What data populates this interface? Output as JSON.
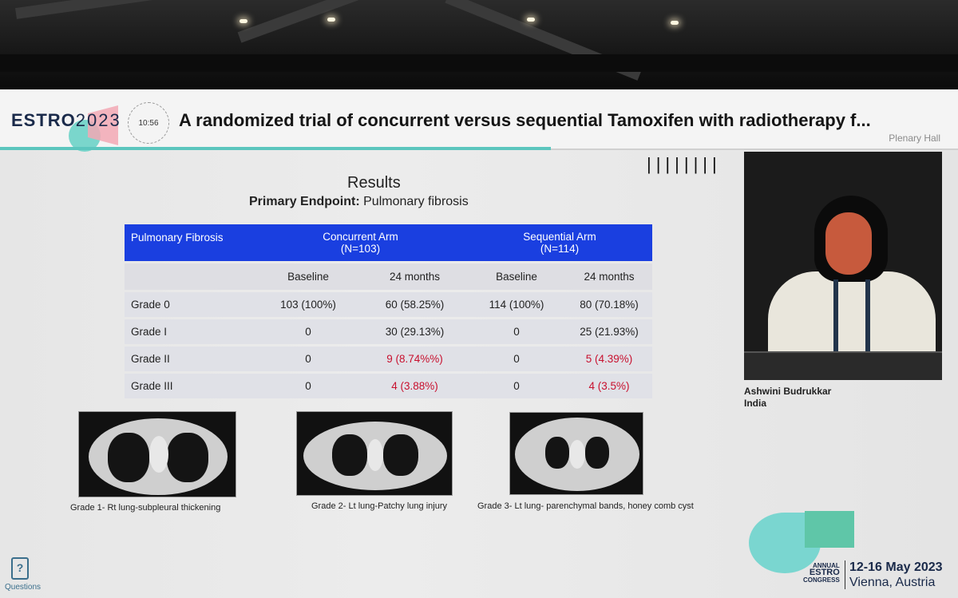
{
  "header": {
    "logo_text": "ESTRO",
    "logo_year": "2023",
    "timer": "10:56",
    "title": "A randomized trial of concurrent versus sequential Tamoxifen with radiotherapy f...",
    "hall": "Plenary Hall"
  },
  "slide": {
    "title": "Results",
    "subtitle_bold": "Primary Endpoint:",
    "subtitle_rest": " Pulmonary fibrosis",
    "ticks": "||||||||",
    "table": {
      "header_lead": "Pulmonary Fibrosis",
      "arm1_name": "Concurrent Arm",
      "arm1_n": "(N=103)",
      "arm2_name": "Sequential Arm",
      "arm2_n": "(N=114)",
      "subheaders": [
        "Baseline",
        "24 months",
        "Baseline",
        "24 months"
      ],
      "rows": [
        {
          "grade": "Grade 0",
          "c_base": "103 (100%)",
          "c_24": "60 (58.25%)",
          "s_base": "114 (100%)",
          "s_24": "80 (70.18%)"
        },
        {
          "grade": "Grade I",
          "c_base": "0",
          "c_24": "30 (29.13%)",
          "s_base": "0",
          "s_24": "25 (21.93%)"
        },
        {
          "grade": "Grade II",
          "c_base": "0",
          "c_24": "9 (8.74%%)",
          "s_base": "0",
          "s_24": "5 (4.39%)"
        },
        {
          "grade": "Grade III",
          "c_base": "0",
          "c_24": "4 (3.88%)",
          "s_base": "0",
          "s_24": "4 (3.5%)"
        }
      ]
    },
    "captions": [
      "Grade 1- Rt lung-subpleural thickening",
      "Grade 2- Lt lung-Patchy lung injury",
      "Grade 3- Lt lung- parenchymal bands, honey comb cyst"
    ]
  },
  "speaker": {
    "name": "Ashwini Budrukkar",
    "country": "India"
  },
  "footer": {
    "questions_icon": "?",
    "questions_label": "Questions",
    "annual": "ANNUAL",
    "estro": "ESTRO",
    "congress": "CONGRESS",
    "dates": "12-16 May 2023",
    "place": "Vienna, Austria"
  },
  "colors": {
    "table_header": "#1a3fe0",
    "highlight_red": "#c8102e",
    "accent_teal": "#5cc6be"
  }
}
